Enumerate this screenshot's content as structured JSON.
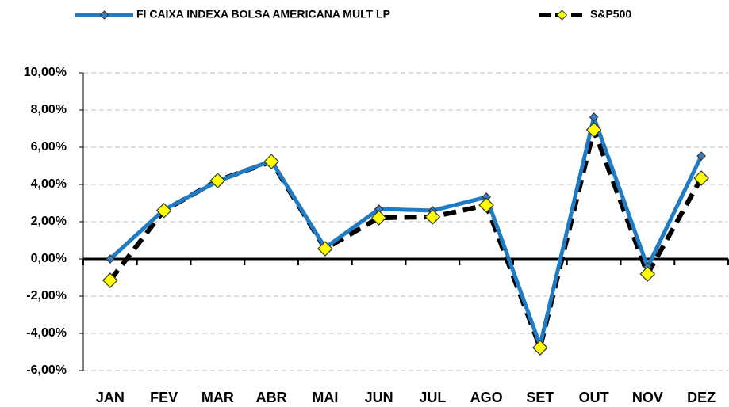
{
  "chart_data": {
    "type": "line",
    "categories": [
      "JAN",
      "FEV",
      "MAR",
      "ABR",
      "MAI",
      "JUN",
      "JUL",
      "AGO",
      "SET",
      "OUT",
      "NOV",
      "DEZ"
    ],
    "series": [
      {
        "name": "FI CAIXA INDEXA BOLSA AMERICANA MULT LP",
        "color": "#1f7bc4",
        "marker_color": "#3a7fc4",
        "values": [
          0.0,
          2.64,
          4.17,
          5.28,
          0.6,
          2.68,
          2.6,
          3.32,
          -4.64,
          7.62,
          -0.43,
          5.53
        ]
      },
      {
        "name": "S&P500",
        "color": "#000000",
        "marker_color": "#ffff00",
        "values": [
          -1.15,
          2.6,
          4.21,
          5.23,
          0.55,
          2.21,
          2.26,
          2.89,
          -4.77,
          6.94,
          -0.81,
          4.34
        ]
      }
    ],
    "ylim": [
      -6,
      10
    ],
    "yticks": [
      {
        "value": -6,
        "label": "-6,00%"
      },
      {
        "value": -4,
        "label": "-4,00%"
      },
      {
        "value": -2,
        "label": "-2,00%"
      },
      {
        "value": 0,
        "label": "0,00%"
      },
      {
        "value": 2,
        "label": "2,00%"
      },
      {
        "value": 4,
        "label": "4,00%"
      },
      {
        "value": 6,
        "label": "6,00%"
      },
      {
        "value": 8,
        "label": "8,00%"
      },
      {
        "value": 10,
        "label": "10,00%"
      }
    ],
    "grid": true
  }
}
